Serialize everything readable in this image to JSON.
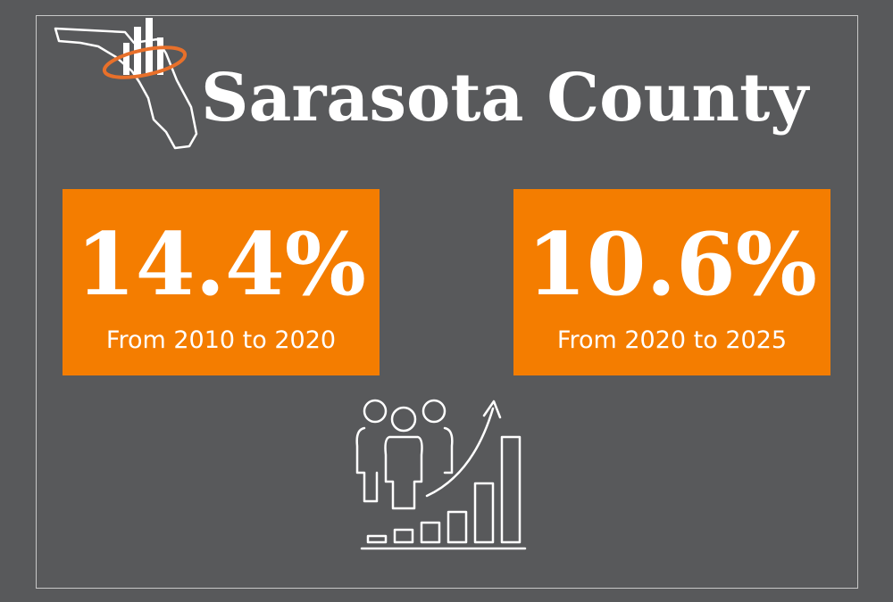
{
  "header": {
    "title": "Sarasota County"
  },
  "stats": [
    {
      "value": "14.4%",
      "label": "From 2010 to 2020"
    },
    {
      "value": "10.6%",
      "label": "From 2020 to 2025"
    }
  ]
}
